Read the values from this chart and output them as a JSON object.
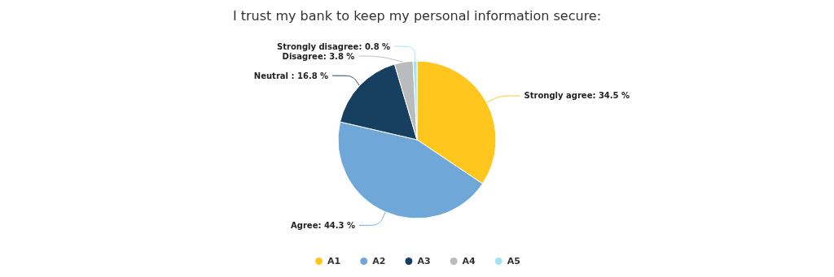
{
  "chart_data": {
    "type": "pie",
    "title": "I trust my bank to keep my personal information secure:",
    "categories": [
      "A1",
      "A2",
      "A3",
      "A4",
      "A5"
    ],
    "values": [
      34.5,
      44.3,
      16.8,
      3.8,
      0.8
    ],
    "colors": [
      "#ffc61e",
      "#6fa8d8",
      "#173f5f",
      "#b9bcbc",
      "#a6e1fa"
    ],
    "value_labels": [
      "Strongly agree: 34.5 %",
      "Agree: 44.3 %",
      "Neutral : 16.8 %",
      "Disagree: 3.8 %",
      "Strongly disagree: 0.8 %"
    ],
    "legend": "bottom"
  }
}
